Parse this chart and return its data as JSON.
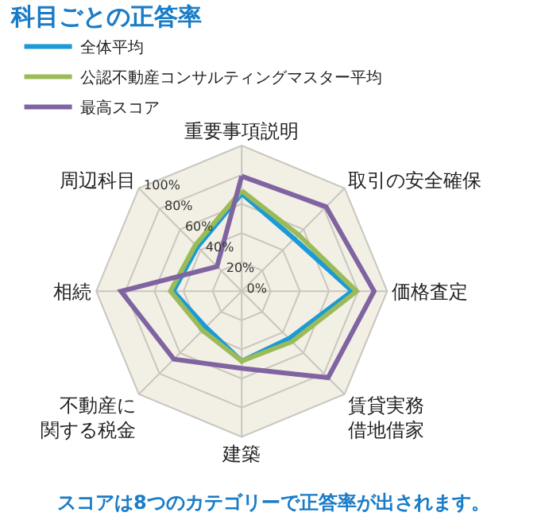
{
  "chart_data": {
    "type": "radar",
    "title": "科目ごとの正答率",
    "categories": [
      "重要事項説明",
      "取引の安全確保",
      "価格査定",
      "賃貸実務借地借家",
      "建築",
      "不動産に関する税金",
      "相続",
      "周辺科目"
    ],
    "series": [
      {
        "name": "全体平均",
        "color": "#1a9ad6",
        "values": [
          67,
          51,
          76,
          46,
          48,
          35,
          47,
          43
        ]
      },
      {
        "name": "公認不動産コンサルティングマスター平均",
        "color": "#9bbb59",
        "values": [
          69,
          55,
          79,
          49,
          48,
          38,
          49,
          45
        ]
      },
      {
        "name": "最高スコア",
        "color": "#8064a2",
        "values": [
          79,
          82,
          91,
          84,
          53,
          66,
          83,
          24
        ]
      }
    ],
    "ylim": [
      0,
      100
    ],
    "yticks": [
      {
        "value": 0,
        "label": "0%"
      },
      {
        "value": 20,
        "label": "20%"
      },
      {
        "value": 40,
        "label": "40%"
      },
      {
        "value": 60,
        "label": "60%"
      },
      {
        "value": 80,
        "label": "80%"
      },
      {
        "value": 100,
        "label": "100%"
      }
    ],
    "grid": true,
    "legend": "top left",
    "marker": "none",
    "line_style": "solid",
    "annotations": [
      "スコアは8つのカテゴリーで正答率が出されます。"
    ]
  }
}
